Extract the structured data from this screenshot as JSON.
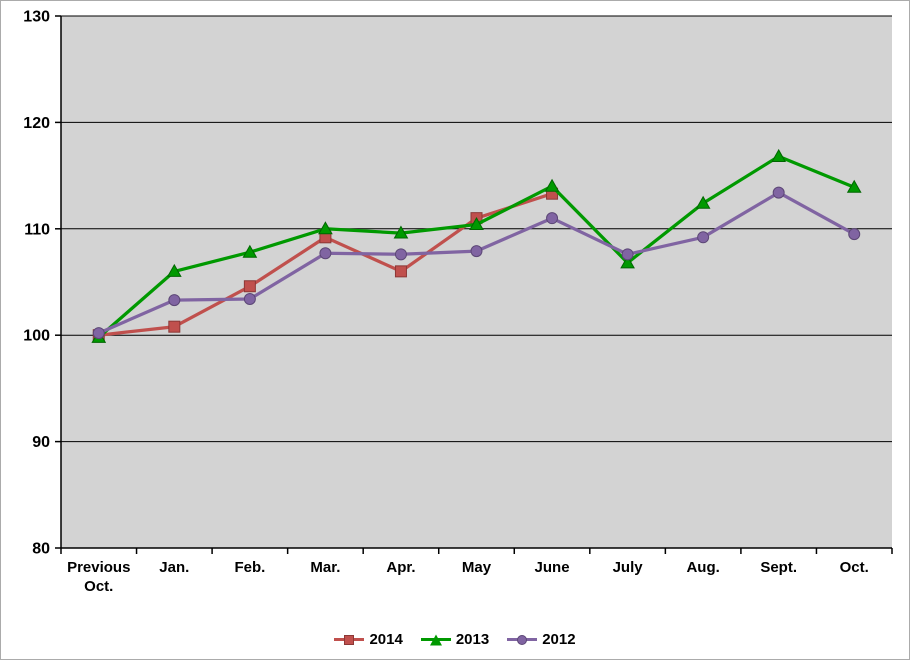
{
  "chart_data": {
    "type": "line",
    "title": "",
    "xlabel": "",
    "ylabel": "",
    "categories": [
      "Previous\nOct.",
      "Jan.",
      "Feb.",
      "Mar.",
      "Apr.",
      "May",
      "June",
      "July",
      "Aug.",
      "Sept.",
      "Oct."
    ],
    "series": [
      {
        "name": "2014",
        "marker": "square",
        "color": "#C0504D",
        "marker_border": "#8C3836",
        "values": [
          100.0,
          100.8,
          104.6,
          109.2,
          106.0,
          111.0,
          113.3,
          null,
          null,
          null,
          null
        ]
      },
      {
        "name": "2013",
        "marker": "triangle",
        "color": "#009900",
        "marker_border": "#006600",
        "values": [
          99.8,
          106.0,
          107.8,
          110.0,
          109.6,
          110.4,
          114.0,
          106.8,
          112.4,
          116.8,
          113.9
        ]
      },
      {
        "name": "2012",
        "marker": "circle",
        "color": "#8064A2",
        "marker_border": "#5C4776",
        "values": [
          100.2,
          103.3,
          103.4,
          107.7,
          107.6,
          107.9,
          111.0,
          107.6,
          109.2,
          113.4,
          109.5
        ]
      }
    ],
    "ylim": [
      80,
      130
    ],
    "ytick_step": 10,
    "ytick_labels": [
      "80",
      "90",
      "100",
      "110",
      "120",
      "130"
    ],
    "grid": "horizontal",
    "legend_position": "bottom",
    "colors": {
      "plot_bg": "#D3D3D3",
      "grid": "#000000",
      "axis": "#000000",
      "outer_border": "#ABABAB",
      "text": "#000000"
    }
  }
}
